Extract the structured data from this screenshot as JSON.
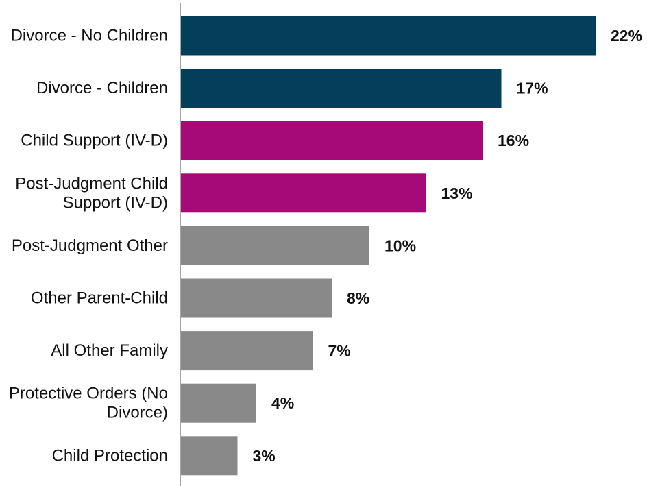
{
  "chart_data": {
    "type": "bar",
    "orientation": "horizontal",
    "categories": [
      "Divorce - No Children",
      "Divorce - Children",
      "Child Support (IV-D)",
      "Post-Judgment Child Support (IV-D)",
      "Post-Judgment Other",
      "Other Parent-Child",
      "All Other Family",
      "Protective Orders (No Divorce)",
      "Child Protection"
    ],
    "category_lines": [
      [
        "Divorce - No Children"
      ],
      [
        "Divorce - Children"
      ],
      [
        "Child Support (IV-D)"
      ],
      [
        "Post-Judgment Child",
        "Support (IV-D)"
      ],
      [
        "Post-Judgment Other"
      ],
      [
        "Other Parent-Child"
      ],
      [
        "All Other Family"
      ],
      [
        "Protective Orders (No",
        "Divorce)"
      ],
      [
        "Child Protection"
      ]
    ],
    "values": [
      22,
      17,
      16,
      13,
      10,
      8,
      7,
      4,
      3
    ],
    "value_labels": [
      "22%",
      "17%",
      "16%",
      "13%",
      "10%",
      "8%",
      "7%",
      "4%",
      "3%"
    ],
    "bar_colors": [
      "#033f5b",
      "#033f5b",
      "#a50a78",
      "#a50a78",
      "#898989",
      "#898989",
      "#898989",
      "#898989",
      "#898989"
    ],
    "axis_color": "#a6a6a6",
    "title": "",
    "xlabel": "",
    "ylabel": "",
    "xlim": [
      0,
      22
    ],
    "grid": false,
    "legend": "none"
  }
}
